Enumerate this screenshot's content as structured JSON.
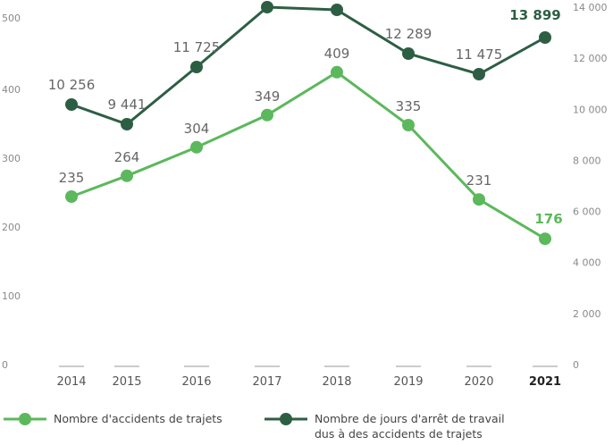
{
  "chart_data": {
    "type": "line",
    "categories": [
      "2014",
      "2015",
      "2016",
      "2017",
      "2018",
      "2019",
      "2020",
      "2021"
    ],
    "highlight_category": "2021",
    "series": [
      {
        "name": "Nombre d'accidents de trajets",
        "axis": "left",
        "color": "#5cb85c",
        "values": [
          235,
          264,
          304,
          349,
          409,
          335,
          231,
          176
        ],
        "labels": [
          "235",
          "264",
          "304",
          "349",
          "409",
          "335",
          "231",
          "176"
        ]
      },
      {
        "name": "Nombre de jours d'arrêt de travail dus à des accidents de trajets",
        "name_lines": [
          "Nombre de jours d'arrêt de travail",
          "dus à des accidents de trajets"
        ],
        "axis": "right",
        "color": "#2d5e44",
        "values": [
          10256,
          9441,
          11725,
          null,
          null,
          12289,
          11475,
          13899
        ],
        "labels": [
          "10 256",
          "9 441",
          "11 725",
          "",
          "",
          "12 289",
          "11 475",
          "13 899"
        ]
      }
    ],
    "y_left": {
      "range": [
        0,
        500
      ],
      "ticks": [
        "0",
        "100",
        "200",
        "300",
        "400",
        "500"
      ]
    },
    "y_right": {
      "range": [
        0,
        14000
      ],
      "ticks": [
        "0",
        "2 000",
        "4 000",
        "6 000",
        "8 000",
        "10 000",
        "12 000",
        "14 000"
      ]
    },
    "legend_position": "bottom",
    "grid": false
  }
}
